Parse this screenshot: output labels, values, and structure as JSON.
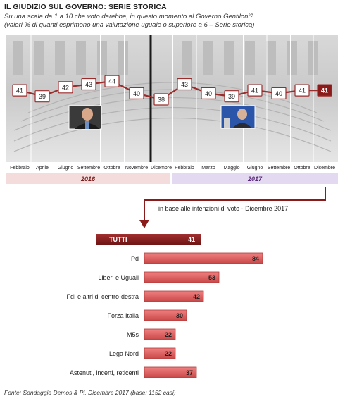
{
  "header": {
    "title": "IL GIUDIZIO  SUL GOVERNO: SERIE STORICA",
    "subtitle_line1": "Su una scala da 1 a 10 che voto darebbe, in questo momento al Governo Gentiloni?",
    "subtitle_line2": "(valori % di quanti esprimono una valutazione uguale o superiore a 6 – Serie storica)"
  },
  "chart_data": [
    {
      "type": "line",
      "x": [
        "Febbraio",
        "Aprile",
        "Giugno",
        "Settembre",
        "Ottobre",
        "Novembre",
        "Dicembre",
        "Febbraio",
        "Marzo",
        "Maggio",
        "Giugno",
        "Settembre",
        "Ottobre",
        "Dicembre"
      ],
      "series": [
        {
          "values": [
            41,
            39,
            42,
            43,
            44,
            40,
            38,
            43,
            40,
            39,
            41,
            40,
            41,
            41
          ]
        }
      ],
      "year_groups": [
        {
          "label": "2016",
          "from": 0,
          "to": 6,
          "color": "#f4dcdc"
        },
        {
          "label": "2017",
          "from": 7,
          "to": 13,
          "color": "#e3d9f0"
        }
      ],
      "line_color": "#9b2c2c",
      "last_point_color": "#8b1a1a"
    },
    {
      "type": "bar",
      "orientation": "horizontal",
      "note": "in base alle intenzioni di voto - Dicembre 2017",
      "categories": [
        "TUTTI",
        "Pd",
        "Liberi e Uguali",
        "FdI e altri di centro-destra",
        "Forza Italia",
        "M5s",
        "Lega Nord",
        "Astenuti, incerti, reticenti"
      ],
      "values": [
        41,
        84,
        53,
        42,
        30,
        22,
        22,
        37
      ],
      "colors": {
        "total": "#8b1a1a",
        "bars": "#e06a6a"
      }
    }
  ],
  "footer": {
    "source": "Fonte: Sondaggio Demos & Pi, Dicembre 2017 (base: 1152 casi)"
  }
}
